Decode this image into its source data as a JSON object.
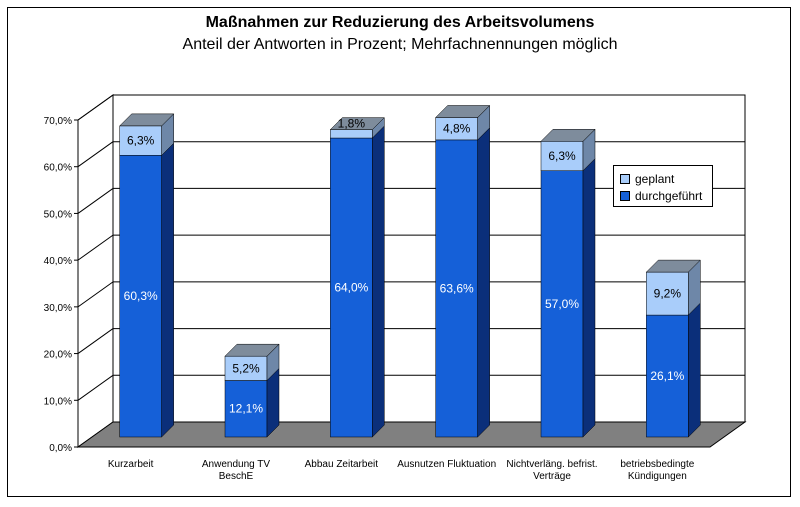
{
  "chart_data": {
    "type": "bar",
    "stacked": true,
    "three_d": true,
    "title": "Maßnahmen zur Reduzierung des Arbeitsvolumens",
    "subtitle": "Anteil der Antworten in Prozent; Mehrfachnennungen möglich",
    "categories": [
      [
        "Kurzarbeit"
      ],
      [
        "Anwendung TV",
        "BeschE"
      ],
      [
        "Abbau Zeitarbeit"
      ],
      [
        "Ausnutzen Fluktuation"
      ],
      [
        "Nichtverläng. befrist.",
        "Verträge"
      ],
      [
        "betriebsbedingte",
        "Kündigungen"
      ]
    ],
    "series": [
      {
        "name": "durchgeführt",
        "values": [
          60.3,
          12.1,
          64.0,
          63.6,
          57.0,
          26.1
        ],
        "labels": [
          "60,3%",
          "12,1%",
          "64,0%",
          "63,6%",
          "57,0%",
          "26,1%"
        ],
        "color": "#1560d8",
        "side_color": "#0b2f7a",
        "top_color": "#5a8ce8"
      },
      {
        "name": "geplant",
        "values": [
          6.3,
          5.2,
          1.8,
          4.8,
          6.3,
          9.2
        ],
        "labels": [
          "6,3%",
          "5,2%",
          "1,8%",
          "4,8%",
          "6,3%",
          "9,2%"
        ],
        "color": "#a9cdfa",
        "side_color": "#6e87a8",
        "top_color": "#7e8c9c"
      }
    ],
    "yticks": [
      "0,0%",
      "10,0%",
      "20,0%",
      "30,0%",
      "40,0%",
      "50,0%",
      "60,0%",
      "70,0%"
    ],
    "ylim": [
      0,
      70
    ],
    "grid": true,
    "legend_position": "right",
    "floor_color": "#808080"
  }
}
